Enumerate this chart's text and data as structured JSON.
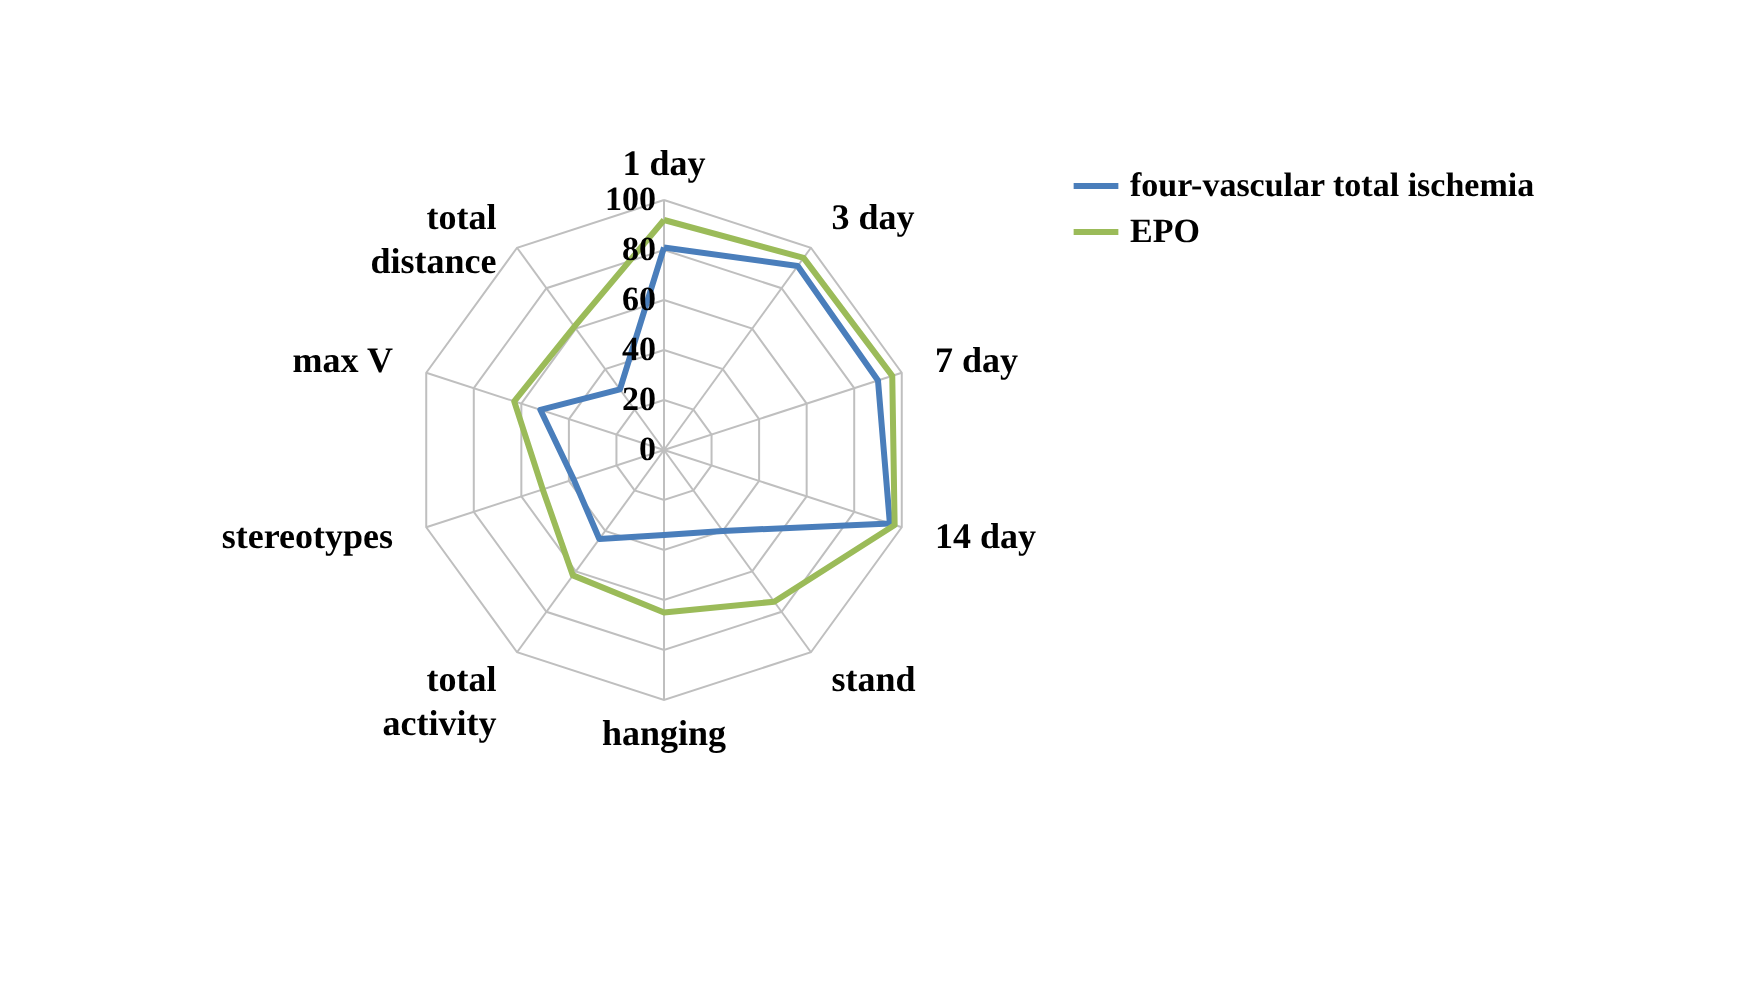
{
  "chart_data": {
    "type": "radar",
    "categories": [
      "1 day",
      "3 day",
      "7 day",
      "14 day",
      "stand",
      "hanging",
      "total activity",
      "stereotypes",
      "max V",
      "total distance"
    ],
    "series": [
      {
        "name": "four-vascular total ischemia",
        "color": "#4a7ebb",
        "values": [
          81,
          91,
          90,
          95,
          40,
          34,
          44,
          38,
          52,
          30
        ]
      },
      {
        "name": "EPO",
        "color": "#9bbb59",
        "values": [
          92,
          95,
          96,
          97,
          75,
          65,
          62,
          51,
          63,
          61
        ]
      }
    ],
    "ylim": [
      0,
      100
    ],
    "yticks": [
      0,
      20,
      40,
      60,
      80,
      100
    ],
    "grid": true,
    "legend": "right"
  }
}
